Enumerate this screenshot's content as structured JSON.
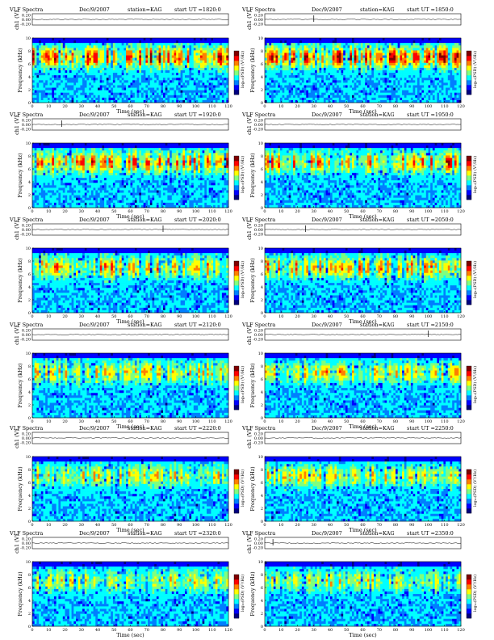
{
  "page_title": "VLF Spectra Dec 9 2007, station KAG",
  "chart_data": [
    {
      "type": "heatmap",
      "title": "VLF Spectra",
      "date": "Dec/9/2007",
      "station": "station=KAG",
      "start": "start  UT =1820:0",
      "signal_label": "ch1 (V)",
      "signal_ticks": [
        "0.20",
        "0.00",
        "-0.20"
      ],
      "ylabel": "Frequency (kHz)",
      "y_ticks": [
        "0",
        "2",
        "4",
        "6",
        "8",
        "10"
      ],
      "ylim": [
        0,
        10
      ],
      "xlabel": "Time (sec)",
      "x_ticks": [
        "0",
        "10",
        "20",
        "30",
        "40",
        "50",
        "60",
        "70",
        "80",
        "90",
        "100",
        "110",
        "120"
      ],
      "xlim": [
        0,
        120
      ],
      "colorbar_label": "log₁₀(PSD) (V²/Hz)",
      "signal_spike_time": null,
      "column": "left",
      "row": 0,
      "bright_intensity": 0.85
    },
    {
      "type": "heatmap",
      "title": "VLF Spectra",
      "date": "Dec/9/2007",
      "station": "station=KAG",
      "start": "start  UT =1850:0",
      "signal_label": "ch1 (V)",
      "signal_ticks": [
        "0.20",
        "0.00",
        "-0.20"
      ],
      "ylabel": "Frequency (kHz)",
      "y_ticks": [
        "0",
        "2",
        "4",
        "6",
        "8",
        "10"
      ],
      "ylim": [
        0,
        10
      ],
      "xlabel": "Time (sec)",
      "x_ticks": [
        "0",
        "10",
        "20",
        "30",
        "40",
        "50",
        "60",
        "70",
        "80",
        "90",
        "100",
        "110",
        "120"
      ],
      "xlim": [
        0,
        120
      ],
      "colorbar_label": "log₁₀(PSD) (V²/Hz)",
      "signal_spike_time": 30,
      "column": "right",
      "row": 0,
      "bright_intensity": 0.85
    },
    {
      "type": "heatmap",
      "title": "VLF Spectra",
      "date": "Dec/9/2007",
      "station": "station=KAG",
      "start": "start  UT =1920:0",
      "signal_label": "ch1 (V)",
      "signal_ticks": [
        "0.20",
        "0.00",
        "-0.20"
      ],
      "ylabel": "Frequency (kHz)",
      "y_ticks": [
        "0",
        "2",
        "4",
        "6",
        "8",
        "10"
      ],
      "ylim": [
        0,
        10
      ],
      "xlabel": "Time (sec)",
      "x_ticks": [
        "0",
        "10",
        "20",
        "30",
        "40",
        "50",
        "60",
        "70",
        "80",
        "90",
        "100",
        "110",
        "120"
      ],
      "xlim": [
        0,
        120
      ],
      "colorbar_label": "log₁₀(PSD) (V²/Hz)",
      "signal_spike_time": 18,
      "column": "left",
      "row": 1,
      "bright_intensity": 0.7
    },
    {
      "type": "heatmap",
      "title": "VLF Spectra",
      "date": "Dec/9/2007",
      "station": "station=KAG",
      "start": "start  UT =1950:0",
      "signal_label": "ch1 (V)",
      "signal_ticks": [
        "0.20",
        "0.00",
        "-0.20"
      ],
      "ylabel": "Frequency (kHz)",
      "y_ticks": [
        "0",
        "2",
        "4",
        "6",
        "8",
        "10"
      ],
      "ylim": [
        0,
        10
      ],
      "xlabel": "Time (sec)",
      "x_ticks": [
        "0",
        "10",
        "20",
        "30",
        "40",
        "50",
        "60",
        "70",
        "80",
        "90",
        "100",
        "110",
        "120"
      ],
      "xlim": [
        0,
        120
      ],
      "colorbar_label": "log₁₀(PSD) (V²/Hz)",
      "signal_spike_time": null,
      "column": "right",
      "row": 1,
      "bright_intensity": 0.7
    },
    {
      "type": "heatmap",
      "title": "VLF Spectra",
      "date": "Dec/9/2007",
      "station": "station=KAG",
      "start": "start  UT =2020:0",
      "signal_label": "ch1 (V)",
      "signal_ticks": [
        "0.20",
        "0.00",
        "-0.20"
      ],
      "ylabel": "Frequency (kHz)",
      "y_ticks": [
        "0",
        "2",
        "4",
        "6",
        "8",
        "10"
      ],
      "ylim": [
        0,
        10
      ],
      "xlabel": "Time (sec)",
      "x_ticks": [
        "0",
        "10",
        "20",
        "30",
        "40",
        "50",
        "60",
        "70",
        "80",
        "90",
        "100",
        "110",
        "120"
      ],
      "xlim": [
        0,
        120
      ],
      "colorbar_label": "log₁₀(PSD) (V²/Hz)",
      "signal_spike_time": 80,
      "column": "left",
      "row": 2,
      "bright_intensity": 0.65
    },
    {
      "type": "heatmap",
      "title": "VLF Spectra",
      "date": "Dec/9/2007",
      "station": "station=KAG",
      "start": "start  UT =2050:0",
      "signal_label": "ch1 (V)",
      "signal_ticks": [
        "0.20",
        "0.00",
        "-0.20"
      ],
      "ylabel": "Frequency (kHz)",
      "y_ticks": [
        "0",
        "2",
        "4",
        "6",
        "8",
        "10"
      ],
      "ylim": [
        0,
        10
      ],
      "xlabel": "Time (sec)",
      "x_ticks": [
        "0",
        "10",
        "20",
        "30",
        "40",
        "50",
        "60",
        "70",
        "80",
        "90",
        "100",
        "110",
        "120"
      ],
      "xlim": [
        0,
        120
      ],
      "colorbar_label": "log₁₀(PSD) (V²/Hz)",
      "signal_spike_time": 25,
      "column": "right",
      "row": 2,
      "bright_intensity": 0.65
    },
    {
      "type": "heatmap",
      "title": "VLF Spectra",
      "date": "Dec/9/2007",
      "station": "station=KAG",
      "start": "start  UT =2120:0",
      "signal_label": "ch1 (V)",
      "signal_ticks": [
        "0.20",
        "0.00",
        "-0.20"
      ],
      "ylabel": "Frequency (kHz)",
      "y_ticks": [
        "0",
        "2",
        "4",
        "6",
        "8",
        "10"
      ],
      "ylim": [
        0,
        10
      ],
      "xlabel": "Time (sec)",
      "x_ticks": [
        "0",
        "10",
        "20",
        "30",
        "40",
        "50",
        "60",
        "70",
        "80",
        "90",
        "100",
        "110",
        "120"
      ],
      "xlim": [
        0,
        120
      ],
      "colorbar_label": "log₁₀(PSD) (V²/Hz)",
      "signal_spike_time": null,
      "column": "left",
      "row": 3,
      "bright_intensity": 0.55
    },
    {
      "type": "heatmap",
      "title": "VLF Spectra",
      "date": "Dec/9/2007",
      "station": "station=KAG",
      "start": "start  UT =2150:0",
      "signal_label": "ch1 (V)",
      "signal_ticks": [
        "0.20",
        "0.00",
        "-0.20"
      ],
      "ylabel": "Frequency (kHz)",
      "y_ticks": [
        "0",
        "2",
        "4",
        "6",
        "8",
        "10"
      ],
      "ylim": [
        0,
        10
      ],
      "xlabel": "Time (sec)",
      "x_ticks": [
        "0",
        "10",
        "20",
        "30",
        "40",
        "50",
        "60",
        "70",
        "80",
        "90",
        "100",
        "110",
        "120"
      ],
      "xlim": [
        0,
        120
      ],
      "colorbar_label": "log₁₀(PSD) (V²/Hz)",
      "signal_spike_time": 100,
      "column": "right",
      "row": 3,
      "bright_intensity": 0.55
    },
    {
      "type": "heatmap",
      "title": "VLF Spectra",
      "date": "Dec/9/2007",
      "station": "station=KAG",
      "start": "start  UT =2220:0",
      "signal_label": "ch1 (V)",
      "signal_ticks": [
        "0.20",
        "0.00",
        "-0.20"
      ],
      "ylabel": "Frequency (kHz)",
      "y_ticks": [
        "0",
        "2",
        "4",
        "6",
        "8",
        "10"
      ],
      "ylim": [
        0,
        10
      ],
      "xlabel": "Time (sec)",
      "x_ticks": [
        "0",
        "10",
        "20",
        "30",
        "40",
        "50",
        "60",
        "70",
        "80",
        "90",
        "100",
        "110",
        "120"
      ],
      "xlim": [
        0,
        120
      ],
      "colorbar_label": "log₁₀(PSD) (V²/Hz)",
      "signal_spike_time": null,
      "column": "left",
      "row": 4,
      "bright_intensity": 0.5
    },
    {
      "type": "heatmap",
      "title": "VLF Spectra",
      "date": "Dec/9/2007",
      "station": "station=KAG",
      "start": "start  UT =2250:0",
      "signal_label": "ch1 (V)",
      "signal_ticks": [
        "0.20",
        "0.00",
        "-0.20"
      ],
      "ylabel": "Frequency (kHz)",
      "y_ticks": [
        "0",
        "2",
        "4",
        "6",
        "8",
        "10"
      ],
      "ylim": [
        0,
        10
      ],
      "xlabel": "Time (sec)",
      "x_ticks": [
        "0",
        "10",
        "20",
        "30",
        "40",
        "50",
        "60",
        "70",
        "80",
        "90",
        "100",
        "110",
        "120"
      ],
      "xlim": [
        0,
        120
      ],
      "colorbar_label": "log₁₀(PSD) (V²/Hz)",
      "signal_spike_time": null,
      "column": "right",
      "row": 4,
      "bright_intensity": 0.5
    },
    {
      "type": "heatmap",
      "title": "VLF Spectra",
      "date": "Dec/9/2007",
      "station": "station=KAG",
      "start": "start  UT =2320:0",
      "signal_label": "ch1 (V)",
      "signal_ticks": [
        "0.20",
        "0.00",
        "-0.20"
      ],
      "ylabel": "Frequency (kHz)",
      "y_ticks": [
        "0",
        "2",
        "4",
        "6",
        "8",
        "10"
      ],
      "ylim": [
        0,
        10
      ],
      "xlabel": "Time (sec)",
      "x_ticks": [
        "0",
        "10",
        "20",
        "30",
        "40",
        "50",
        "60",
        "70",
        "80",
        "90",
        "100",
        "110",
        "120"
      ],
      "xlim": [
        0,
        120
      ],
      "colorbar_label": "log₁₀(PSD) (V²/Hz)",
      "signal_spike_time": null,
      "column": "left",
      "row": 5,
      "bright_intensity": 0.45
    },
    {
      "type": "heatmap",
      "title": "VLF Spectra",
      "date": "Dec/9/2007",
      "station": "station=KAG",
      "start": "start  UT =2350:0",
      "signal_label": "ch1 (V)",
      "signal_ticks": [
        "0.20",
        "0.00",
        "-0.20"
      ],
      "ylabel": "Frequency (kHz)",
      "y_ticks": [
        "0",
        "2",
        "4",
        "6",
        "8",
        "10"
      ],
      "ylim": [
        0,
        10
      ],
      "xlabel": "Time (sec)",
      "x_ticks": [
        "0",
        "10",
        "20",
        "30",
        "40",
        "50",
        "60",
        "70",
        "80",
        "90",
        "100",
        "110",
        "120"
      ],
      "xlim": [
        0,
        120
      ],
      "colorbar_label": "log₁₀(PSD) (V²/Hz)",
      "signal_spike_time": 5,
      "column": "right",
      "row": 5,
      "bright_intensity": 0.45
    }
  ],
  "colors": {
    "colormap": [
      "#00007f",
      "#0000ff",
      "#007fff",
      "#00ffff",
      "#7fff7f",
      "#ffff00",
      "#ff7f00",
      "#ff0000",
      "#7f0000"
    ],
    "axis": "#000000",
    "background": "#ffffff"
  }
}
